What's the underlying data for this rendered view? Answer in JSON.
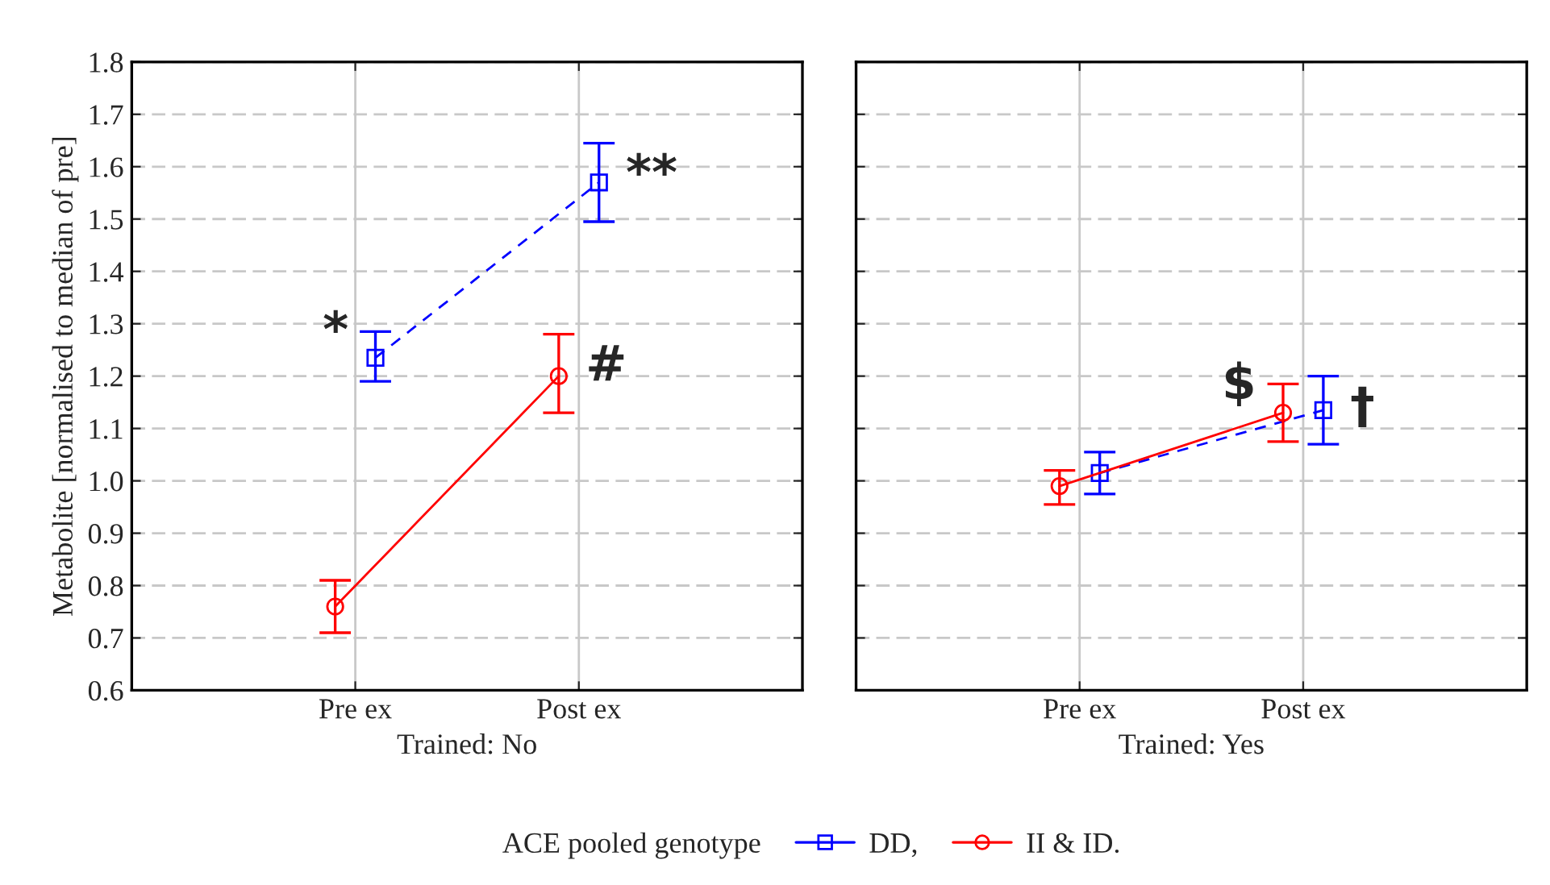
{
  "chart_data": [
    {
      "type": "line",
      "xlabel": "Trained: No",
      "ylabel": "Metabolite [normalised to median of pre]",
      "categories": [
        "Pre ex",
        "Post ex"
      ],
      "ylim": [
        0.6,
        1.8
      ],
      "yticks": [
        {
          "value": 0.6,
          "label": "0.6"
        },
        {
          "value": 0.7,
          "label": "0.7"
        },
        {
          "value": 0.8,
          "label": "0.8"
        },
        {
          "value": 0.9,
          "label": "0.9"
        },
        {
          "value": 1.0,
          "label": "1.0"
        },
        {
          "value": 1.1,
          "label": "1.1"
        },
        {
          "value": 1.2,
          "label": "1.2"
        },
        {
          "value": 1.3,
          "label": "1.3"
        },
        {
          "value": 1.4,
          "label": "1.4"
        },
        {
          "value": 1.5,
          "label": "1.5"
        },
        {
          "value": 1.6,
          "label": "1.6"
        },
        {
          "value": 1.7,
          "label": "1.7"
        },
        {
          "value": 1.8,
          "label": "1.8"
        }
      ],
      "grid": true,
      "legend": "bottom",
      "legend_title": "ACE pooled genotype",
      "series": [
        {
          "name": "DD,",
          "color": "#0000ff",
          "marker": "square",
          "line_style": "dashed",
          "values": [
            1.235,
            1.57
          ],
          "errors": [
            [
              1.19,
              1.285
            ],
            [
              1.495,
              1.645
            ]
          ]
        },
        {
          "name": "II & ID.",
          "color": "#ff0000",
          "marker": "circle",
          "line_style": "solid",
          "values": [
            0.76,
            1.2
          ],
          "errors": [
            [
              0.71,
              0.81
            ],
            [
              1.13,
              1.28
            ]
          ]
        }
      ],
      "annotations": [
        "*",
        "**",
        "#"
      ]
    },
    {
      "type": "line",
      "xlabel": "Trained: Yes",
      "categories": [
        "Pre ex",
        "Post ex"
      ],
      "ylim": [
        0.6,
        1.8
      ],
      "yticks": [
        0.6,
        0.7,
        0.8,
        0.9,
        1.0,
        1.1,
        1.2,
        1.3,
        1.4,
        1.5,
        1.6,
        1.7,
        1.8
      ],
      "grid": true,
      "tick_labels": "x",
      "series": [
        {
          "color": "#0000ff",
          "marker": "square",
          "line_style": "dashed",
          "values": [
            1.015,
            1.135
          ],
          "errors": [
            [
              0.975,
              1.055
            ],
            [
              1.07,
              1.2
            ]
          ]
        },
        {
          "color": "#ff0000",
          "marker": "circle",
          "line_style": "solid",
          "values": [
            0.99,
            1.13
          ],
          "errors": [
            [
              0.955,
              1.02
            ],
            [
              1.075,
              1.185
            ]
          ]
        }
      ],
      "annotations": [
        "$",
        "†"
      ]
    }
  ]
}
